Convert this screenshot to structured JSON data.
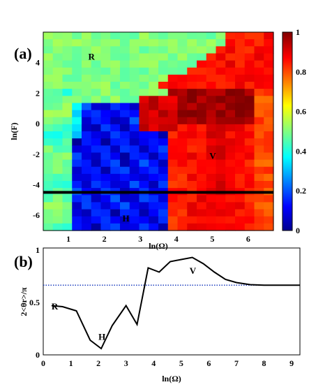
{
  "chart_data": [
    {
      "panel_label": "(a)",
      "type": "heatmap",
      "xlabel": "ln(Ω)",
      "ylabel": "ln(F)",
      "xlim": [
        0.3,
        6.7
      ],
      "ylim": [
        -7,
        6
      ],
      "xticks": [
        "1",
        "2",
        "3",
        "4",
        "5",
        "6"
      ],
      "yticks": [
        "4",
        "2",
        "0",
        "-2",
        "-4",
        "-6"
      ],
      "colorbar": {
        "range": [
          0,
          1
        ],
        "ticks": [
          "0",
          "0.2",
          "0.4",
          "0.6",
          "0.8",
          "1"
        ],
        "colormap": "jet"
      },
      "reference_line_y": -4.5,
      "region_labels": [
        "R",
        "V",
        "H"
      ],
      "grid_cols": 24,
      "grid_rows": 28
    },
    {
      "panel_label": "(b)",
      "type": "line",
      "xlabel": "ln(Ω)",
      "ylabel": "2<θr>/π",
      "xlim": [
        0,
        9.3
      ],
      "ylim": [
        0,
        1
      ],
      "xticks": [
        "0",
        "1",
        "2",
        "3",
        "4",
        "5",
        "6",
        "7",
        "8",
        "9"
      ],
      "yticks": [
        "0",
        "0.5",
        "1"
      ],
      "reference_line_y": 0.665,
      "point_labels": [
        "R",
        "H",
        "V"
      ],
      "series": [
        {
          "x": [
            0.3,
            0.7,
            1.2,
            1.7,
            2.1,
            2.5,
            3.0,
            3.4,
            3.8,
            4.2,
            4.6,
            5.0,
            5.4,
            5.8,
            6.2,
            6.6,
            7.0,
            7.5,
            8.0,
            8.5,
            9.0,
            9.3
          ],
          "y": [
            0.47,
            0.46,
            0.42,
            0.14,
            0.06,
            0.28,
            0.47,
            0.29,
            0.83,
            0.79,
            0.89,
            0.91,
            0.93,
            0.87,
            0.79,
            0.72,
            0.69,
            0.67,
            0.665,
            0.665,
            0.665,
            0.665
          ]
        }
      ]
    }
  ]
}
